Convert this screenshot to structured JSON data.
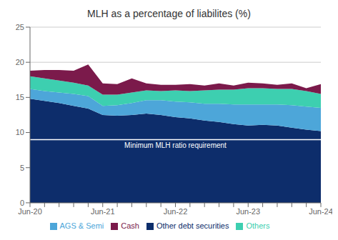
{
  "chart_data": {
    "type": "area",
    "title": "MLH as a percentage of liabilites (%)",
    "categories": [
      "Jun-20",
      null,
      null,
      null,
      null,
      "Jun-21",
      null,
      null,
      null,
      null,
      "Jun-22",
      null,
      null,
      null,
      null,
      "Jun-23",
      null,
      null,
      null,
      null,
      "Jun-24"
    ],
    "series": [
      {
        "name": "Other debt securities",
        "color": "#0d2d6b",
        "values": [
          14.8,
          14.5,
          14.2,
          13.8,
          13.4,
          12.5,
          12.4,
          12.5,
          12.7,
          12.5,
          12.2,
          12.0,
          11.7,
          11.5,
          11.2,
          11.0,
          11.1,
          11.0,
          10.7,
          10.4,
          10.2
        ]
      },
      {
        "name": "AGS & Semi",
        "color": "#4da6d9",
        "values": [
          1.4,
          1.4,
          1.5,
          1.7,
          1.8,
          1.3,
          1.5,
          1.7,
          1.9,
          2.1,
          2.2,
          2.3,
          2.4,
          2.6,
          2.8,
          3.0,
          2.9,
          3.0,
          3.2,
          3.3,
          3.3
        ]
      },
      {
        "name": "Others",
        "color": "#3dcfb0",
        "values": [
          1.8,
          1.8,
          1.7,
          1.6,
          1.5,
          1.6,
          1.5,
          1.5,
          1.4,
          1.3,
          1.6,
          1.6,
          1.9,
          2.0,
          2.1,
          2.3,
          2.3,
          2.2,
          2.3,
          2.2,
          2.0
        ]
      },
      {
        "name": "Cash",
        "color": "#7b1a4b",
        "values": [
          0.8,
          1.2,
          1.5,
          1.7,
          3.0,
          1.6,
          1.5,
          2.0,
          1.0,
          0.9,
          0.8,
          1.0,
          0.7,
          0.9,
          0.6,
          0.8,
          0.7,
          0.6,
          0.8,
          0.4,
          1.4
        ]
      }
    ],
    "stacked": true,
    "ylim": [
      0,
      25
    ],
    "yticks": [
      0,
      5,
      10,
      15,
      20,
      25
    ],
    "grid": true,
    "legend": "bottom",
    "reference_line": {
      "y": 9.0,
      "label": "Minimum MLH ratio requirement",
      "color": "#ffffff"
    }
  }
}
